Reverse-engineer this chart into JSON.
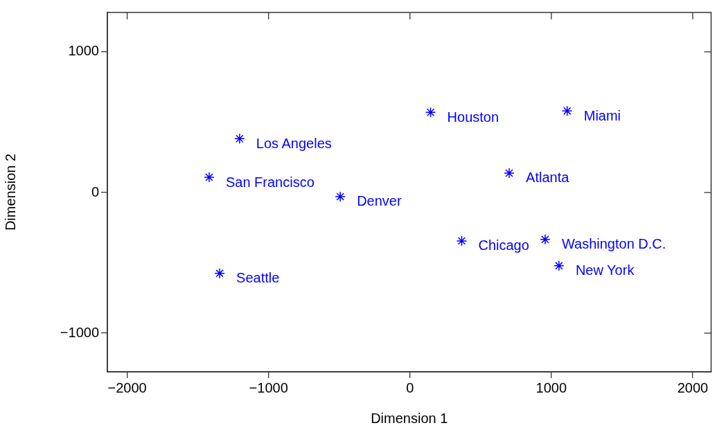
{
  "chart_data": {
    "type": "scatter",
    "xlabel": "Dimension 1",
    "ylabel": "Dimension 2",
    "x": [
      146,
      1112,
      -1205,
      -1420,
      702,
      -493,
      366,
      956,
      1054,
      -1346
    ],
    "series": [
      {
        "color": "#0000ff",
        "values": [
          570,
          580,
          383,
          108,
          138,
          -29,
          -344,
          -334,
          -521,
          -575
        ]
      }
    ],
    "xlim": [
      -2140,
      2130
    ],
    "ylim": [
      -1275,
      1280
    ],
    "xticks": [
      {
        "value": -2000,
        "label": "−2000"
      },
      {
        "value": -1000,
        "label": "−1000"
      },
      0,
      1000,
      2000
    ],
    "yticks": [
      {
        "value": -1000,
        "label": "−1000"
      },
      0,
      1000
    ],
    "marker": "cross",
    "grid": false,
    "legend": false,
    "annotations": [
      {
        "text": "Houston",
        "x": 146,
        "y": 570
      },
      {
        "text": "Miami",
        "x": 1112,
        "y": 580
      },
      {
        "text": "Los Angeles",
        "x": -1205,
        "y": 383
      },
      {
        "text": "San Francisco",
        "x": -1420,
        "y": 108
      },
      {
        "text": "Atlanta",
        "x": 702,
        "y": 138
      },
      {
        "text": "Denver",
        "x": -493,
        "y": -29
      },
      {
        "text": "Chicago",
        "x": 366,
        "y": -344
      },
      {
        "text": "Washington D.C.",
        "x": 956,
        "y": -334
      },
      {
        "text": "New York",
        "x": 1054,
        "y": -521
      },
      {
        "text": "Seattle",
        "x": -1346,
        "y": -575
      }
    ]
  }
}
